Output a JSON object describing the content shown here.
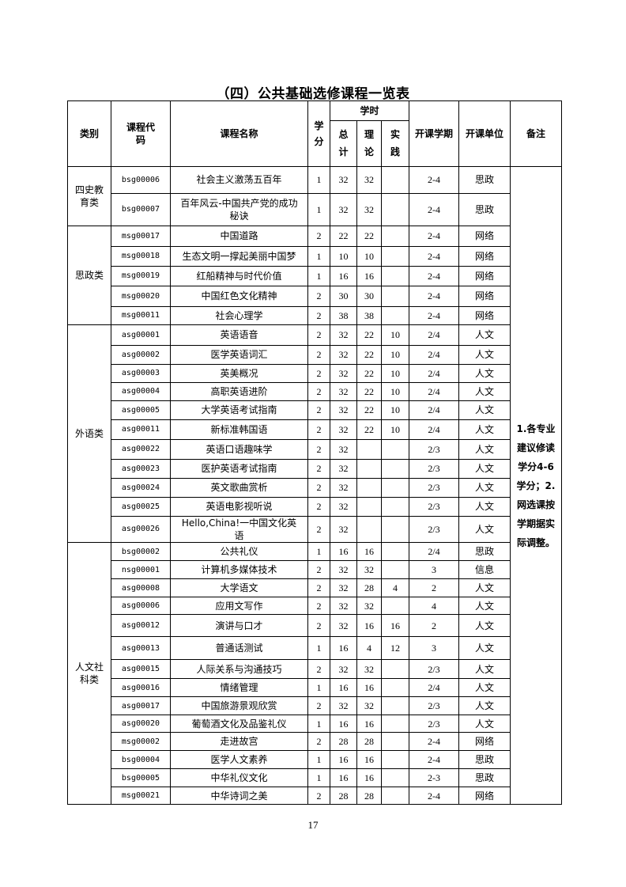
{
  "title": "（四）公共基础选修课程一览表",
  "page_number": "17",
  "table": {
    "headers": {
      "category": "类别",
      "code": "课程代码",
      "name": "课程名称",
      "credits": "学分",
      "hours": "学时",
      "hours_total": "总计",
      "hours_theory": "理论",
      "hours_practice": "实践",
      "semester": "开课学期",
      "unit": "开课单位",
      "remarks": "备注"
    },
    "remarks": "1.各专业建议修读学分4-6学分；2.网选课按学期据实际调整。",
    "groups": [
      {
        "category": "四史教育类",
        "rows": [
          {
            "code": "bsg00006",
            "name": "社会主义激荡五百年",
            "credits": "1",
            "total": "32",
            "theory": "32",
            "practice": "",
            "semester": "2-4",
            "unit": "思政"
          },
          {
            "code": "bsg00007",
            "name": "百年风云-中国共产党的成功秘诀",
            "credits": "1",
            "total": "32",
            "theory": "32",
            "practice": "",
            "semester": "2-4",
            "unit": "思政"
          }
        ]
      },
      {
        "category": "思政类",
        "rows": [
          {
            "code": "msg00017",
            "name": "中国道路",
            "credits": "2",
            "total": "22",
            "theory": "22",
            "practice": "",
            "semester": "2-4",
            "unit": "网络"
          },
          {
            "code": "msg00018",
            "name": "生态文明一撑起美丽中国梦",
            "credits": "1",
            "total": "10",
            "theory": "10",
            "practice": "",
            "semester": "2-4",
            "unit": "网络"
          },
          {
            "code": "msg00019",
            "name": "红船精神与时代价值",
            "credits": "1",
            "total": "16",
            "theory": "16",
            "practice": "",
            "semester": "2-4",
            "unit": "网络"
          },
          {
            "code": "msg00020",
            "name": "中国红色文化精神",
            "credits": "2",
            "total": "30",
            "theory": "30",
            "practice": "",
            "semester": "2-4",
            "unit": "网络"
          },
          {
            "code": "msg00011",
            "name": "社会心理学",
            "credits": "2",
            "total": "38",
            "theory": "38",
            "practice": "",
            "semester": "2-4",
            "unit": "网络"
          }
        ]
      },
      {
        "category": "外语类",
        "rows": [
          {
            "code": "asg00001",
            "name": "英语语音",
            "credits": "2",
            "total": "32",
            "theory": "22",
            "practice": "10",
            "semester": "2/4",
            "unit": "人文"
          },
          {
            "code": "asg00002",
            "name": "医学英语词汇",
            "credits": "2",
            "total": "32",
            "theory": "22",
            "practice": "10",
            "semester": "2/4",
            "unit": "人文"
          },
          {
            "code": "asg00003",
            "name": "英美概况",
            "credits": "2",
            "total": "32",
            "theory": "22",
            "practice": "10",
            "semester": "2/4",
            "unit": "人文"
          },
          {
            "code": "asg00004",
            "name": "高职英语进阶",
            "credits": "2",
            "total": "32",
            "theory": "22",
            "practice": "10",
            "semester": "2/4",
            "unit": "人文"
          },
          {
            "code": "asg00005",
            "name": "大学英语考试指南",
            "credits": "2",
            "total": "32",
            "theory": "22",
            "practice": "10",
            "semester": "2/4",
            "unit": "人文"
          },
          {
            "code": "asg00011",
            "name": "新标准韩国语",
            "credits": "2",
            "total": "32",
            "theory": "22",
            "practice": "10",
            "semester": "2/4",
            "unit": "人文"
          },
          {
            "code": "asg00022",
            "name": "英语口语趣味学",
            "credits": "2",
            "total": "32",
            "theory": "",
            "practice": "",
            "semester": "2/3",
            "unit": "人文"
          },
          {
            "code": "asg00023",
            "name": "医护英语考试指南",
            "credits": "2",
            "total": "32",
            "theory": "",
            "practice": "",
            "semester": "2/3",
            "unit": "人文"
          },
          {
            "code": "asg00024",
            "name": "英文歌曲赏析",
            "credits": "2",
            "total": "32",
            "theory": "",
            "practice": "",
            "semester": "2/3",
            "unit": "人文"
          },
          {
            "code": "asg00025",
            "name": "英语电影视听说",
            "credits": "2",
            "total": "32",
            "theory": "",
            "practice": "",
            "semester": "2/3",
            "unit": "人文"
          },
          {
            "code": "asg00026",
            "name": "Hello,China!一中国文化英语",
            "credits": "2",
            "total": "32",
            "theory": "",
            "practice": "",
            "semester": "2/3",
            "unit": "人文"
          }
        ]
      },
      {
        "category": "人文社科类",
        "rows": [
          {
            "code": "bsg00002",
            "name": "公共礼仪",
            "credits": "1",
            "total": "16",
            "theory": "16",
            "practice": "",
            "semester": "2/4",
            "unit": "思政"
          },
          {
            "code": "nsg00001",
            "name": "计算机多媒体技术",
            "credits": "2",
            "total": "32",
            "theory": "32",
            "practice": "",
            "semester": "3",
            "unit": "信息"
          },
          {
            "code": "asg00008",
            "name": "大学语文",
            "credits": "2",
            "total": "32",
            "theory": "28",
            "practice": "4",
            "semester": "2",
            "unit": "人文"
          },
          {
            "code": "asg00006",
            "name": "应用文写作",
            "credits": "2",
            "total": "32",
            "theory": "32",
            "practice": "",
            "semester": "4",
            "unit": "人文"
          },
          {
            "code": "asg00012",
            "name": "演讲与口才",
            "credits": "2",
            "total": "32",
            "theory": "16",
            "practice": "16",
            "semester": "2",
            "unit": "人文"
          },
          {
            "code": "asg00013",
            "name": "普通话测试",
            "credits": "1",
            "total": "16",
            "theory": "4",
            "practice": "12",
            "semester": "3",
            "unit": "人文"
          },
          {
            "code": "asg00015",
            "name": "人际关系与沟通技巧",
            "credits": "2",
            "total": "32",
            "theory": "32",
            "practice": "",
            "semester": "2/3",
            "unit": "人文"
          },
          {
            "code": "asg00016",
            "name": "情绪管理",
            "credits": "1",
            "total": "16",
            "theory": "16",
            "practice": "",
            "semester": "2/4",
            "unit": "人文"
          },
          {
            "code": "asg00017",
            "name": "中国旅游景观欣赏",
            "credits": "2",
            "total": "32",
            "theory": "32",
            "practice": "",
            "semester": "2/3",
            "unit": "人文"
          },
          {
            "code": "asg00020",
            "name": "葡萄酒文化及品鉴礼仪",
            "credits": "1",
            "total": "16",
            "theory": "16",
            "practice": "",
            "semester": "2/3",
            "unit": "人文"
          },
          {
            "code": "msg00002",
            "name": "走进故宫",
            "credits": "2",
            "total": "28",
            "theory": "28",
            "practice": "",
            "semester": "2-4",
            "unit": "网络"
          },
          {
            "code": "bsg00004",
            "name": "医学人文素养",
            "credits": "1",
            "total": "16",
            "theory": "16",
            "practice": "",
            "semester": "2-4",
            "unit": "思政"
          },
          {
            "code": "bsg00005",
            "name": "中华礼仪文化",
            "credits": "1",
            "total": "16",
            "theory": "16",
            "practice": "",
            "semester": "2-3",
            "unit": "思政"
          },
          {
            "code": "msg00021",
            "name": "中华诗词之美",
            "credits": "2",
            "total": "28",
            "theory": "28",
            "practice": "",
            "semester": "2-4",
            "unit": "网络"
          }
        ]
      }
    ]
  }
}
